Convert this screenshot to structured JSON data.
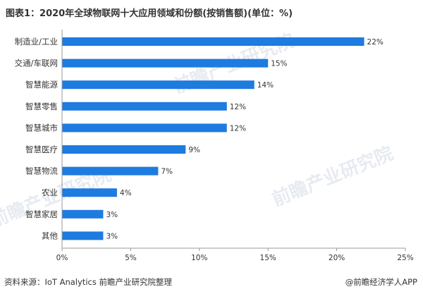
{
  "title": "图表1：2020年全球物联网十大应用领域和份额(按销售额)(单位：%)",
  "footer": {
    "source": "资料来源：IoT Analytics 前瞻产业研究院整理",
    "brand": "@前瞻经济学人APP"
  },
  "watermark": "前瞻产业研究院",
  "colors": {
    "bar": "#1e7be0",
    "axis": "#999999",
    "text": "#333333"
  },
  "chart_data": {
    "type": "bar",
    "orientation": "horizontal",
    "categories": [
      "制造业/工业",
      "交通/车联网",
      "智慧能源",
      "智慧零售",
      "智慧城市",
      "智慧医疗",
      "智慧物流",
      "农业",
      "智慧家居",
      "其他"
    ],
    "values": [
      22,
      15,
      14,
      12,
      12,
      9,
      7,
      4,
      3,
      3
    ],
    "data_labels": [
      "22%",
      "15%",
      "14%",
      "12%",
      "12%",
      "9%",
      "7%",
      "4%",
      "3%",
      "3%"
    ],
    "x_ticks": [
      "0%",
      "5%",
      "10%",
      "15%",
      "20%",
      "25%"
    ],
    "xlim": [
      0,
      25
    ],
    "grid": false,
    "legend": "none"
  }
}
